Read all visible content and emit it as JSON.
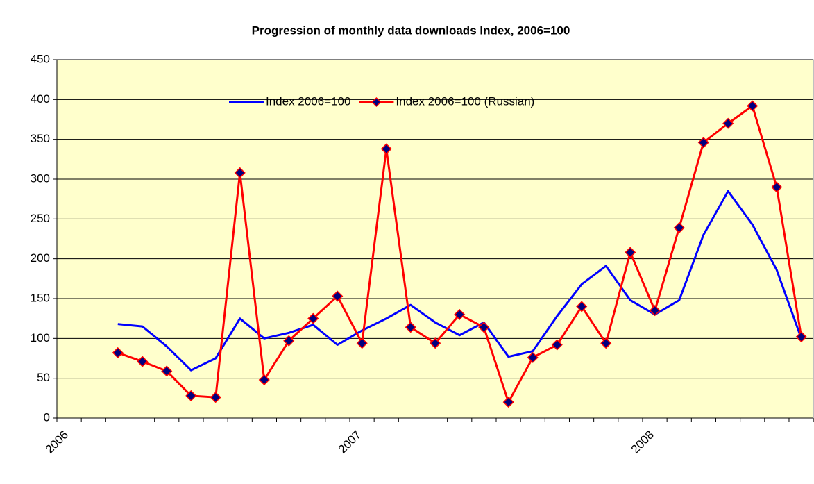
{
  "chart_data": {
    "type": "line",
    "title": "Progression of monthly data downloads Index, 2006=100",
    "x": [
      2006.208,
      2006.292,
      2006.375,
      2006.458,
      2006.542,
      2006.625,
      2006.708,
      2006.792,
      2006.875,
      2006.958,
      2007.042,
      2007.125,
      2007.208,
      2007.292,
      2007.375,
      2007.458,
      2007.542,
      2007.625,
      2007.708,
      2007.792,
      2007.875,
      2007.958,
      2008.042,
      2008.125,
      2008.208,
      2008.292,
      2008.375,
      2008.458,
      2008.542
    ],
    "series": [
      {
        "name": "Index 2006=100",
        "color": "#0000ff",
        "values": [
          118,
          115,
          90,
          60,
          75,
          125,
          100,
          107,
          117,
          92,
          110,
          125,
          142,
          120,
          104,
          120,
          77,
          84,
          128,
          168,
          191,
          148,
          130,
          148,
          230,
          285,
          243,
          186,
          100
        ]
      },
      {
        "name": "Index 2006=100 (Russian)",
        "color": "#ff0000",
        "marker_color": "#000080",
        "values": [
          82,
          71,
          59,
          28,
          26,
          308,
          48,
          97,
          125,
          153,
          94,
          338,
          114,
          94,
          130,
          114,
          20,
          76,
          92,
          140,
          94,
          208,
          135,
          239,
          346,
          370,
          392,
          290,
          102
        ]
      }
    ],
    "xlim": [
      2006,
      2008.583
    ],
    "xticks": [
      2006,
      2007,
      2008
    ],
    "ylim": [
      0,
      450
    ],
    "yticks": [
      0,
      50,
      100,
      150,
      200,
      250,
      300,
      350,
      400,
      450
    ],
    "grid": true,
    "legend": "top",
    "plot_background": "#ffffcc"
  }
}
